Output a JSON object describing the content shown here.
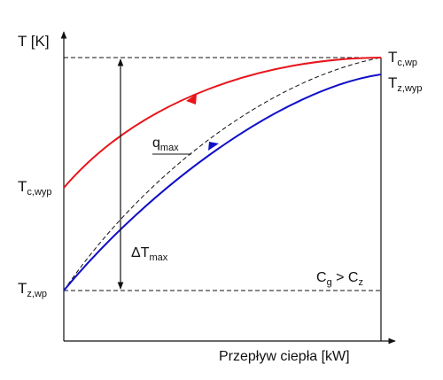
{
  "labels": {
    "y_axis": "T [K]",
    "x_axis": "Przepływ ciepła [kW]",
    "t_c_wp": {
      "main": "T",
      "sub": "c,wp"
    },
    "t_z_wyp": {
      "main": "T",
      "sub": "z,wyp"
    },
    "t_c_wyp": {
      "main": "T",
      "sub": "c,wyp"
    },
    "t_z_wp": {
      "main": "T",
      "sub": "z,wp"
    },
    "q_max": {
      "main": "q",
      "sub": "max"
    },
    "delta_t_max": {
      "main": "ΔT",
      "sub": "max"
    },
    "condition": {
      "c1": "C",
      "s1": "g",
      "mid": " > C",
      "s2": "z"
    }
  },
  "colors": {
    "hot_stream": "#e8151b",
    "cold_stream": "#1010c8",
    "reference": "#111111"
  }
}
